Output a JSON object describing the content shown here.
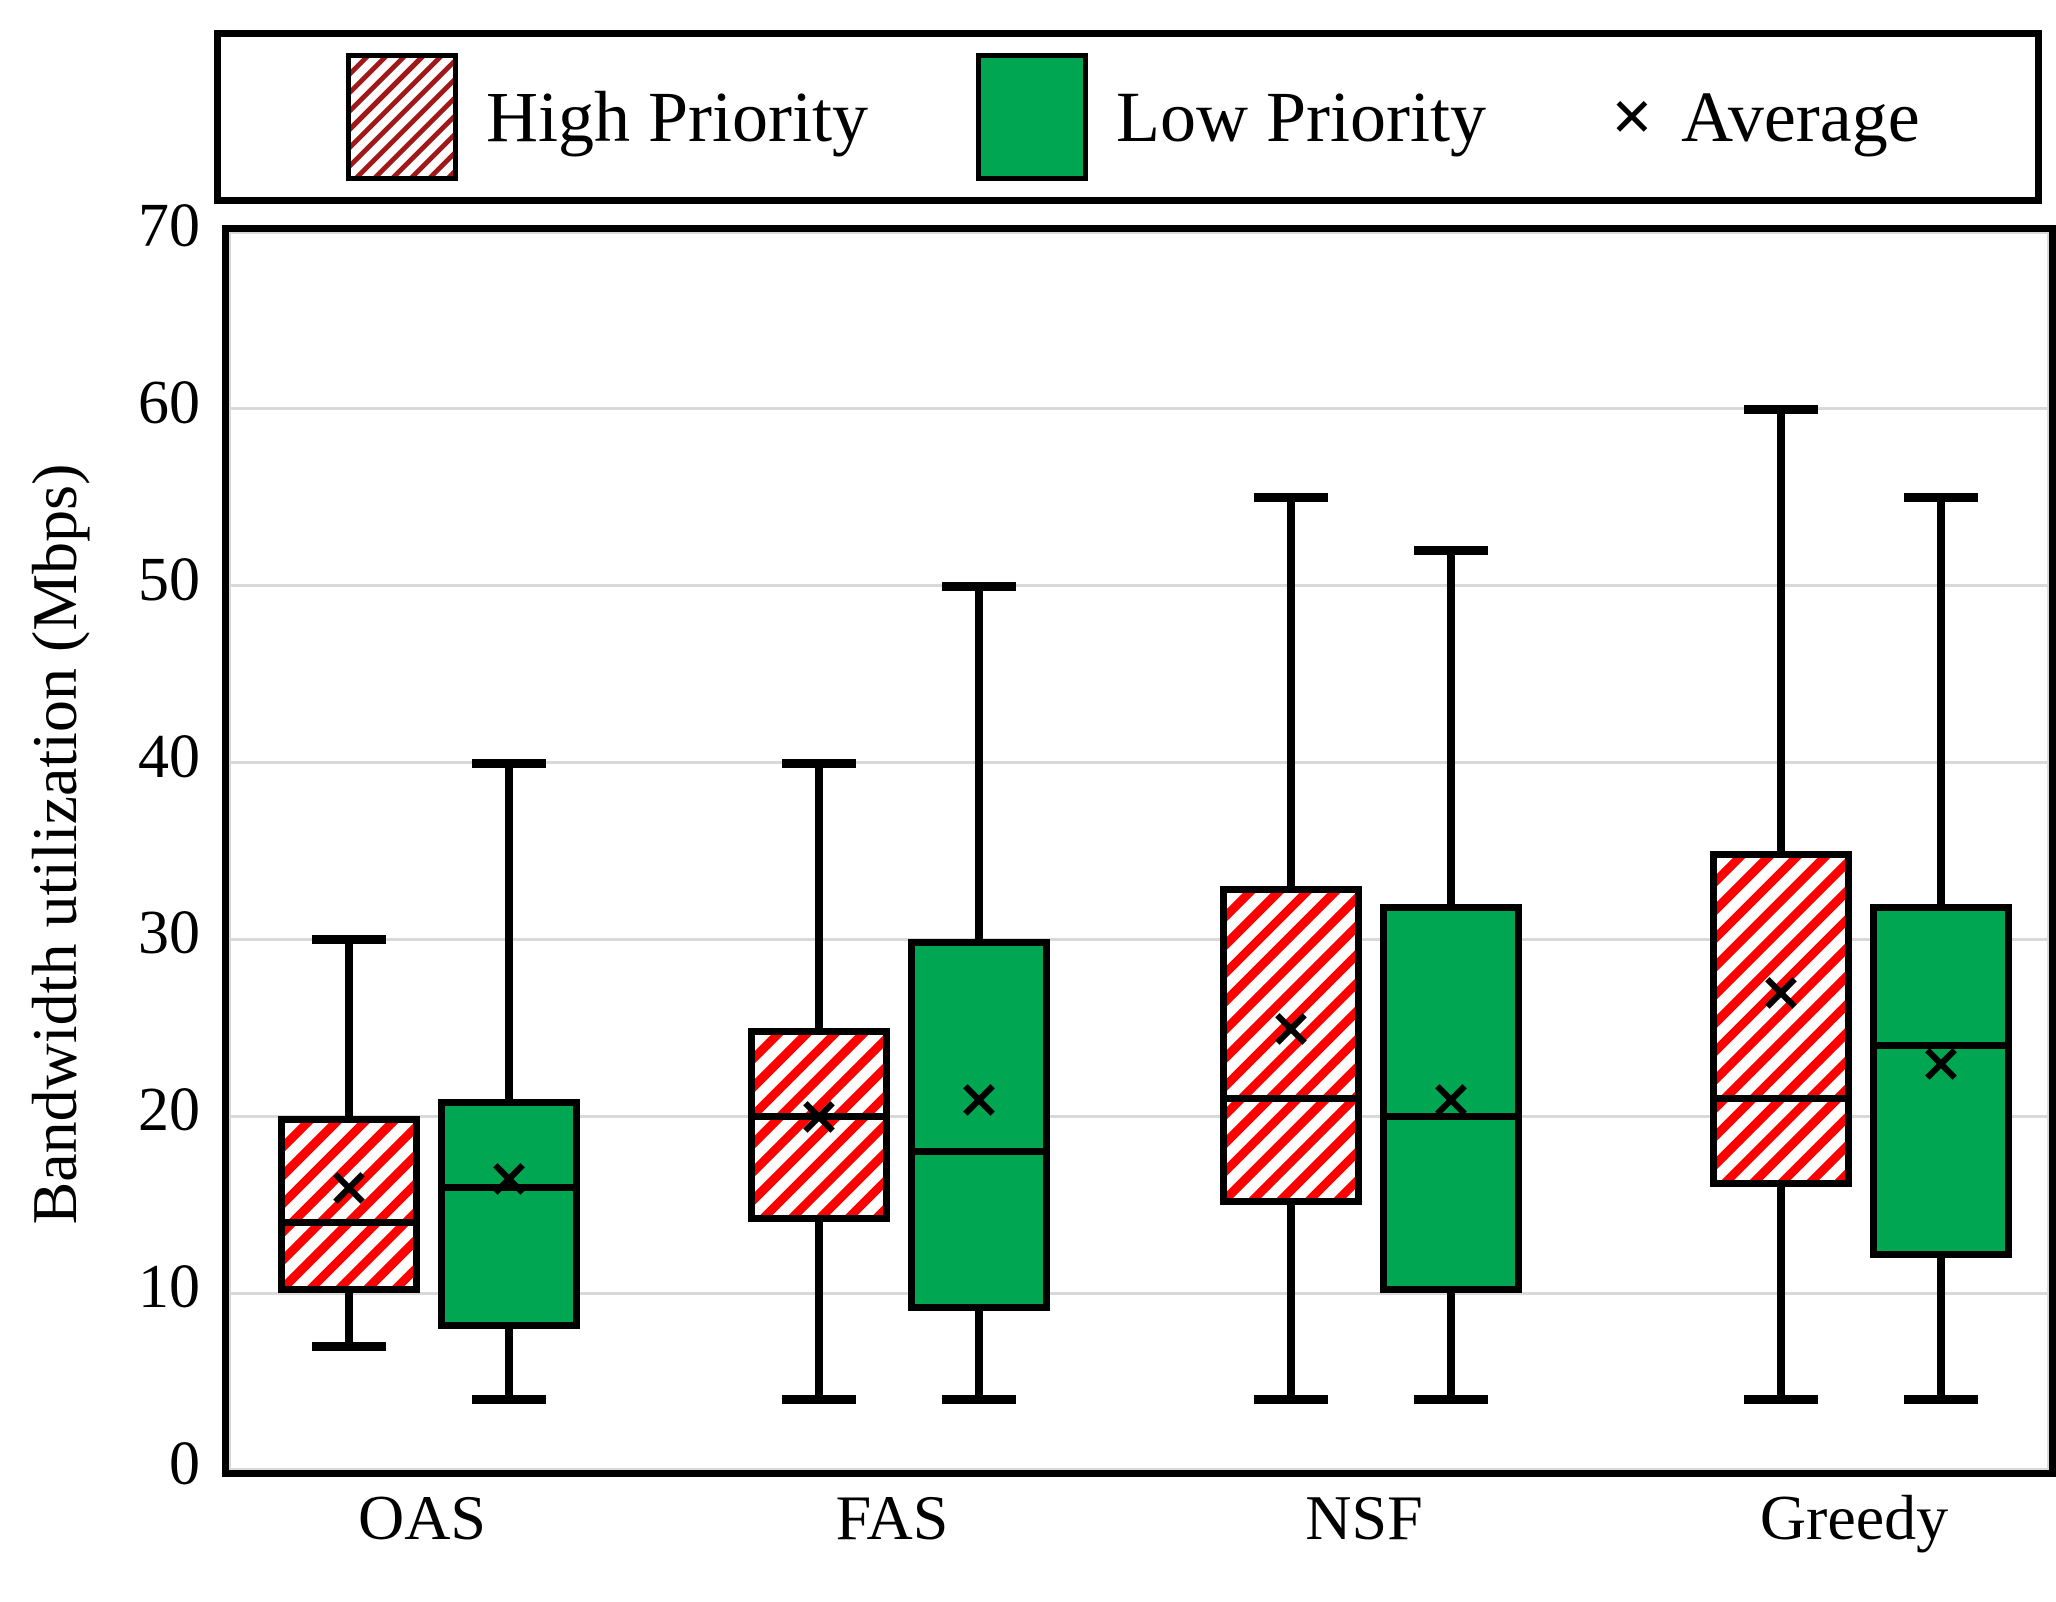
{
  "figure": {
    "background": "#ffffff"
  },
  "legend": {
    "high_priority_label": "High Priority",
    "low_priority_label": "Low Priority",
    "average_label": "Average",
    "average_marker": "×"
  },
  "axes": {
    "y_title": "Bandwidth utilization (Mbps)"
  },
  "chart_data": {
    "type": "boxplot",
    "title": "",
    "xlabel": "",
    "ylabel": "Bandwidth utilization (Mbps)",
    "ylim": [
      0,
      70
    ],
    "yticks": [
      0,
      10,
      20,
      30,
      40,
      50,
      60,
      70
    ],
    "grid": "horizontal",
    "legend_position": "top",
    "categories": [
      "OAS",
      "FAS",
      "NSF",
      "Greedy"
    ],
    "legend": {
      "items": [
        {
          "label": "High Priority",
          "style": "red-hatch"
        },
        {
          "label": "Low Priority",
          "style": "green-solid"
        },
        {
          "label": "Average",
          "marker": "×"
        }
      ]
    },
    "series": [
      {
        "name": "High Priority",
        "style": "hatch",
        "boxes": [
          {
            "category": "OAS",
            "whisker_low": 7,
            "q1": 10,
            "median": 14,
            "q3": 20,
            "whisker_high": 30,
            "mean": 16
          },
          {
            "category": "FAS",
            "whisker_low": 4,
            "q1": 14,
            "median": 20,
            "q3": 25,
            "whisker_high": 40,
            "mean": 20
          },
          {
            "category": "NSF",
            "whisker_low": 4,
            "q1": 15,
            "median": 21,
            "q3": 33,
            "whisker_high": 55,
            "mean": 25
          },
          {
            "category": "Greedy",
            "whisker_low": 4,
            "q1": 16,
            "median": 21,
            "q3": 35,
            "whisker_high": 60,
            "mean": 27
          }
        ]
      },
      {
        "name": "Low Priority",
        "style": "green",
        "boxes": [
          {
            "category": "OAS",
            "whisker_low": 4,
            "q1": 8,
            "median": 16,
            "q3": 21,
            "whisker_high": 40,
            "mean": 16.5
          },
          {
            "category": "FAS",
            "whisker_low": 4,
            "q1": 9,
            "median": 18,
            "q3": 30,
            "whisker_high": 50,
            "mean": 21
          },
          {
            "category": "NSF",
            "whisker_low": 4,
            "q1": 10,
            "median": 20,
            "q3": 32,
            "whisker_high": 52,
            "mean": 21
          },
          {
            "category": "Greedy",
            "whisker_low": 4,
            "q1": 12,
            "median": 24,
            "q3": 32,
            "whisker_high": 55,
            "mean": 23
          }
        ]
      }
    ],
    "colors": {
      "low_priority_green": "#00a651",
      "high_priority_red": "#ff0000",
      "legend_hatch_red": "#a01818",
      "gridline": "#d9d9d9",
      "box_border": "#000000"
    }
  }
}
